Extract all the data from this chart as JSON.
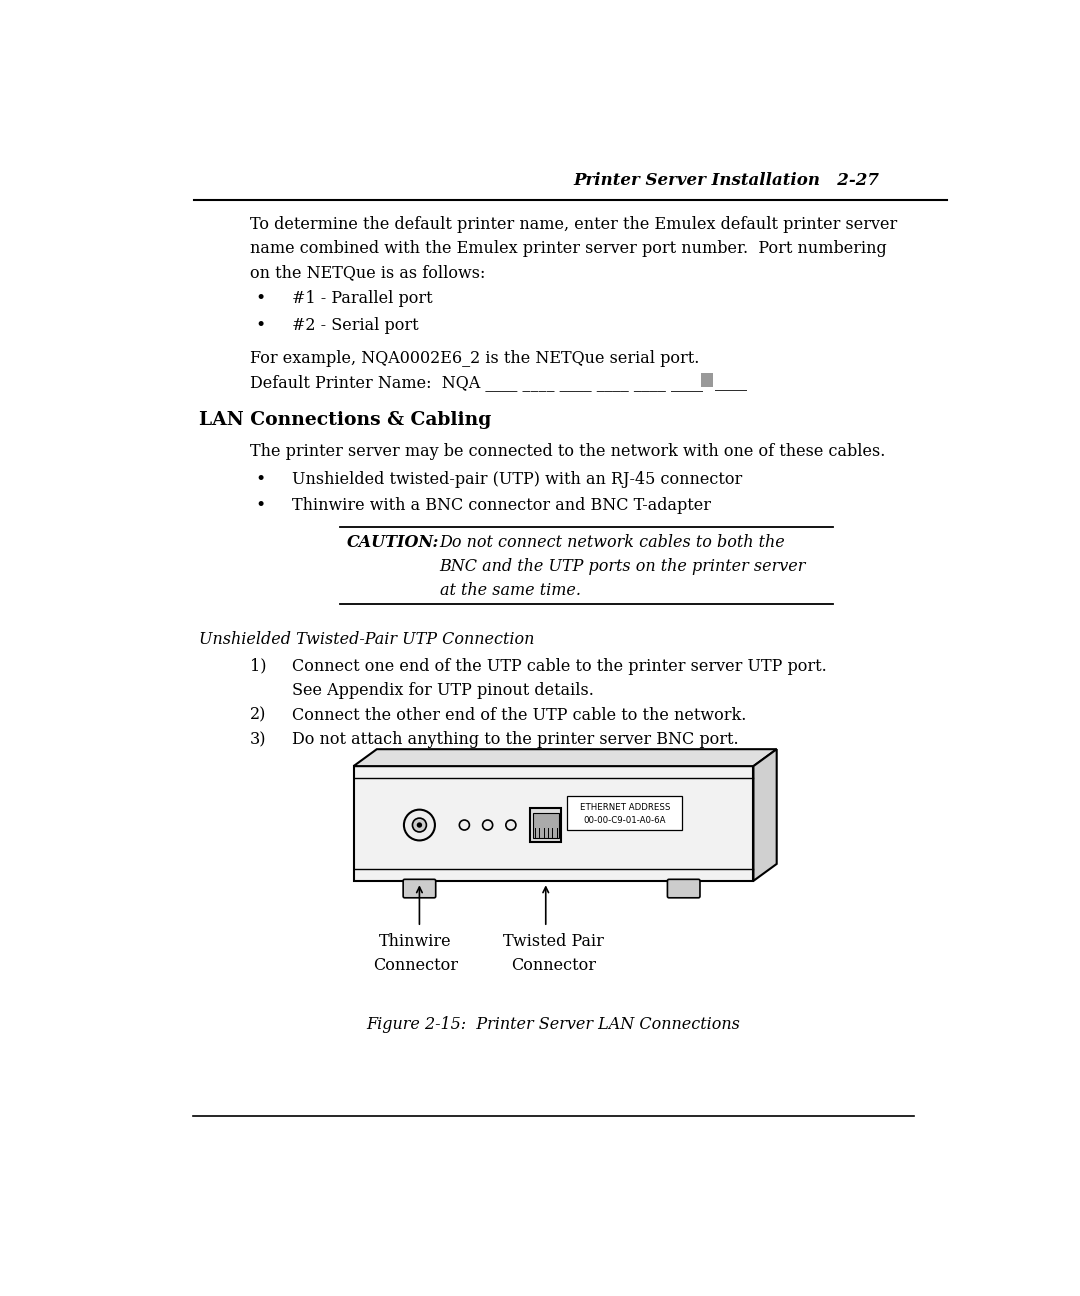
{
  "bg_color": "#ffffff",
  "header_text": "Printer Server Installation   2-27",
  "para1": "To determine the default printer name, enter the Emulex default printer server\nname combined with the Emulex printer server port number.  Port numbering\non the NETQue is as follows:",
  "bullet1": "#1 - Parallel port",
  "bullet2": "#2 - Serial port",
  "example_line": "For example, NQA0002E6_2 is the NETQue serial port.",
  "default_name_prefix": "Default Printer Name:  NQA ____ ____ ____ ____ ____ ____",
  "default_name_suffix": "____",
  "section_heading": "LAN Connections & Cabling",
  "section_para": "The printer server may be connected to the network with one of these cables.",
  "bullet3": "Unshielded twisted-pair (UTP) with an RJ-45 connector",
  "bullet4": "Thinwire with a BNC connector and BNC T-adapter",
  "caution_label": "CAUTION:",
  "caution_text": "Do not connect network cables to both the\nBNC and the UTP ports on the printer server\nat the same time.",
  "subsection_heading": "Unshielded Twisted-Pair UTP Connection",
  "step1a": "Connect one end of the UTP cable to the printer server UTP port.",
  "step1b": "See Appendix for UTP pinout details.",
  "step2": "Connect the other end of the UTP cable to the network.",
  "step3": "Do not attach anything to the printer server BNC port.",
  "label_thinwire": "Thinwire\nConnector",
  "label_twisted": "Twisted Pair\nConnector",
  "ethernet_label": "ETHERNET ADDRESS\n00-00-C9-01-A0-6A",
  "figure_caption": "Figure 2-15:  Printer Server LAN Connections"
}
